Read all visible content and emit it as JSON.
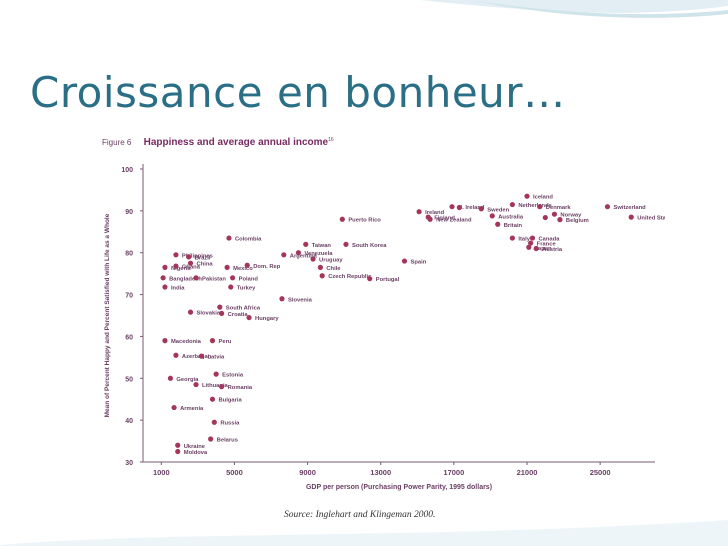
{
  "slide": {
    "title": "Croissance en bonheur…",
    "source": "Source: Inglehart and Klingeman 2000."
  },
  "colors": {
    "title": "#2a6f86",
    "point": "#a4365c",
    "label": "#6a3f64",
    "axis": "#7a5a72"
  },
  "chart_data": {
    "type": "scatter",
    "figure_label": "Figure 6",
    "title": "Happiness and average annual income",
    "title_sup": "16",
    "xlabel": "GDP per person (Purchasing Power Parity, 1995 dollars)",
    "ylabel": "Mean of Percent Happy and Percent Satisfied with Life as a Whole",
    "ylim": [
      30,
      100
    ],
    "yticks": [
      30,
      40,
      50,
      60,
      70,
      80,
      90,
      100
    ],
    "xticks": [
      "1000",
      "5000",
      "9000",
      "13000",
      "17000",
      "21000",
      "25000"
    ],
    "xlim": [
      0,
      28000
    ],
    "grid": false,
    "points": [
      {
        "label": "Iceland",
        "x": 21000,
        "y": 93.5
      },
      {
        "label": "Netherlands",
        "x": 20200,
        "y": 91.5
      },
      {
        "label": "N. Ireland",
        "x": 16900,
        "y": 91
      },
      {
        "label": "",
        "x": 17300,
        "y": 90.8
      },
      {
        "label": "Sweden",
        "x": 18500,
        "y": 90.5
      },
      {
        "label": "Denmark",
        "x": 21700,
        "y": 91
      },
      {
        "label": "Ireland",
        "x": 15100,
        "y": 89.8
      },
      {
        "label": "Finland",
        "x": 15600,
        "y": 88.5
      },
      {
        "label": "Australia",
        "x": 19100,
        "y": 88.8
      },
      {
        "label": "Norway",
        "x": 22500,
        "y": 89.2
      },
      {
        "label": "",
        "x": 22000,
        "y": 88.4
      },
      {
        "label": "Belgium",
        "x": 22800,
        "y": 87.9
      },
      {
        "label": "New Zealand",
        "x": 15700,
        "y": 88
      },
      {
        "label": "Britain",
        "x": 19400,
        "y": 86.8
      },
      {
        "label": "Switzerland",
        "x": 25400,
        "y": 91
      },
      {
        "label": "United States",
        "x": 26700,
        "y": 88.5
      },
      {
        "label": "Puerto Rico",
        "x": 10900,
        "y": 88
      },
      {
        "label": "Italy",
        "x": 20200,
        "y": 83.5
      },
      {
        "label": "Canada",
        "x": 21300,
        "y": 83.5
      },
      {
        "label": "France",
        "x": 21200,
        "y": 82.3
      },
      {
        "label": "Japan",
        "x": 21100,
        "y": 81.3
      },
      {
        "label": "Austria",
        "x": 21500,
        "y": 81
      },
      {
        "label": "Colombia",
        "x": 4700,
        "y": 83.5
      },
      {
        "label": "Taiwan",
        "x": 8900,
        "y": 82
      },
      {
        "label": "South Korea",
        "x": 11100,
        "y": 82
      },
      {
        "label": "Venezuela",
        "x": 8500,
        "y": 80
      },
      {
        "label": "Uruguay",
        "x": 9300,
        "y": 78.5
      },
      {
        "label": "Argentina",
        "x": 7700,
        "y": 79.5
      },
      {
        "label": "Spain",
        "x": 14300,
        "y": 78
      },
      {
        "label": "Chile",
        "x": 9700,
        "y": 76.5
      },
      {
        "label": "Czech Republic",
        "x": 9800,
        "y": 74.5
      },
      {
        "label": "Portugal",
        "x": 12400,
        "y": 73.8
      },
      {
        "label": "Philippines",
        "x": 1800,
        "y": 79.5
      },
      {
        "label": "Brazil",
        "x": 2500,
        "y": 79
      },
      {
        "label": "China",
        "x": 2600,
        "y": 77.5
      },
      {
        "label": "Nigeria",
        "x": 1200,
        "y": 76.5
      },
      {
        "label": "Ghana",
        "x": 1800,
        "y": 76.8
      },
      {
        "label": "Mexico",
        "x": 4600,
        "y": 76.5
      },
      {
        "label": "Dom. Rep",
        "x": 5700,
        "y": 77
      },
      {
        "label": "Bangladesh",
        "x": 1100,
        "y": 74
      },
      {
        "label": "Pakistan",
        "x": 2900,
        "y": 74
      },
      {
        "label": "Poland",
        "x": 4900,
        "y": 74
      },
      {
        "label": "India",
        "x": 1200,
        "y": 71.8
      },
      {
        "label": "Turkey",
        "x": 4800,
        "y": 71.8
      },
      {
        "label": "Slovenia",
        "x": 7600,
        "y": 69
      },
      {
        "label": "South Africa",
        "x": 4200,
        "y": 67
      },
      {
        "label": "Slovakia",
        "x": 2600,
        "y": 65.8
      },
      {
        "label": "Croatia",
        "x": 4300,
        "y": 65.5
      },
      {
        "label": "Hungary",
        "x": 5800,
        "y": 64.5
      },
      {
        "label": "Macedonia",
        "x": 1200,
        "y": 59
      },
      {
        "label": "Peru",
        "x": 3800,
        "y": 59
      },
      {
        "label": "Azerbaijan",
        "x": 1800,
        "y": 55.5
      },
      {
        "label": "Latvia",
        "x": 3200,
        "y": 55.3
      },
      {
        "label": "Estonia",
        "x": 4000,
        "y": 51
      },
      {
        "label": "Georgia",
        "x": 1500,
        "y": 50
      },
      {
        "label": "Lithuania",
        "x": 2900,
        "y": 48.5
      },
      {
        "label": "Romania",
        "x": 4300,
        "y": 48
      },
      {
        "label": "Bulgaria",
        "x": 3800,
        "y": 45
      },
      {
        "label": "Armenia",
        "x": 1700,
        "y": 43
      },
      {
        "label": "Russia",
        "x": 3900,
        "y": 39.5
      },
      {
        "label": "Belarus",
        "x": 3700,
        "y": 35.5
      },
      {
        "label": "Ukraine",
        "x": 1900,
        "y": 34
      },
      {
        "label": "Moldova",
        "x": 1900,
        "y": 32.5
      }
    ]
  }
}
